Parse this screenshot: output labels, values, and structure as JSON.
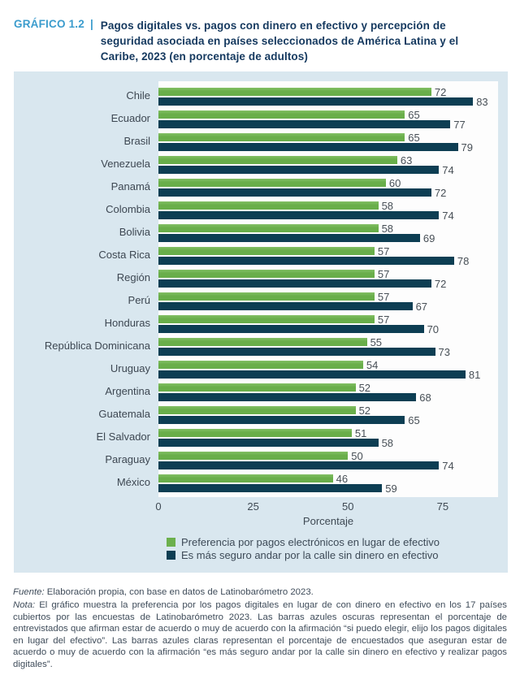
{
  "header": {
    "figure_label": "GRÁFICO 1.2",
    "separator": "|",
    "title": "Pagos digitales vs. pagos con dinero en efectivo y percepción de seguridad asociada en países seleccionados de América Latina y el Caribe, 2023 (en porcentaje de adultos)"
  },
  "chart_data": {
    "type": "bar",
    "orientation": "horizontal",
    "categories": [
      "Chile",
      "Ecuador",
      "Brasil",
      "Venezuela",
      "Panamá",
      "Colombia",
      "Bolivia",
      "Costa Rica",
      "Región",
      "Perú",
      "Honduras",
      "República Dominicana",
      "Uruguay",
      "Argentina",
      "Guatemala",
      "El Salvador",
      "Paraguay",
      "México"
    ],
    "series": [
      {
        "name": "Preferencia por pagos electrónicos en lugar de efectivo",
        "color": "#6cb04d",
        "values": [
          72,
          65,
          65,
          63,
          60,
          58,
          58,
          57,
          57,
          57,
          57,
          55,
          54,
          52,
          52,
          51,
          50,
          46
        ]
      },
      {
        "name": "Es más seguro andar por la calle sin dinero en efectivo",
        "color": "#0d3e53",
        "values": [
          83,
          77,
          79,
          74,
          72,
          74,
          69,
          78,
          72,
          67,
          70,
          73,
          81,
          68,
          65,
          58,
          74,
          59
        ]
      }
    ],
    "xlabel": "Porcentaje",
    "x_ticks": [
      0,
      25,
      50,
      75
    ],
    "xlim": [
      0,
      89.6
    ],
    "grid": false,
    "legend_position": "bottom",
    "value_labels": true
  },
  "colors": {
    "panel_background": "#d9e7ef",
    "plot_background": "#fdfdfd",
    "figure_label_blue": "#3b9ccd",
    "title_navy": "#15395f",
    "bar_green": "#6cb04d",
    "bar_navy": "#0d3e53"
  },
  "footer": {
    "fuente_label": "Fuente:",
    "fuente_text": " Elaboración propia, con base en datos de Latinobarómetro 2023.",
    "nota_label": "Nota:",
    "nota_text": " El gráfico muestra la preferencia por los pagos digitales en lugar de con dinero en efectivo en los 17 países cubiertos por las encuestas de Latinobarómetro 2023. Las barras azules oscuras representan el porcentaje de entrevistados que afirman estar de acuerdo o muy de acuerdo con la afirmación “si puedo elegir, elijo los pagos digitales en lugar del efectivo”. Las barras azules claras representan el porcentaje de encuestados que aseguran estar de acuerdo o muy de acuerdo con la afirmación “es más seguro andar por la calle sin dinero en efectivo y realizar pagos digitales”."
  }
}
